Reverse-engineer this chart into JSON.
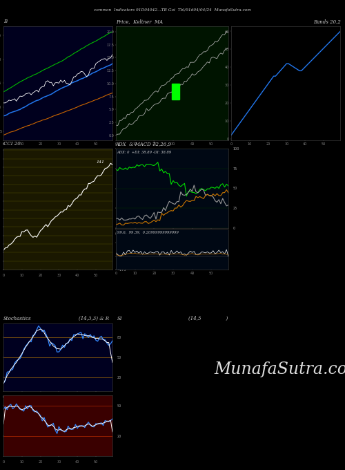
{
  "title": "common  Indicators 91D04042...TB Goi  Tbl/91d04/04/24  MunafaSutra.com",
  "bg_color": "#000000",
  "panel_bg_b": "#00001e",
  "panel_bg_keltner": "#001400",
  "panel_bg_cci": "#1a1800",
  "panel_bg_adx_top": "#000814",
  "panel_bg_adx_bot": "#000814",
  "panel_bg_stoch": "#000020",
  "panel_bg_stoch_r": "#3a0000",
  "label_b": "B",
  "label_keltner": "Price,  Keltner  MA",
  "label_bands": "Bands 20,2",
  "label_cci": "CCI 20",
  "label_adx": "ADX  & MACD 12,26,9",
  "label_stoch": "Stochastics",
  "label_stoch_params": "(14,3,3) & R",
  "label_si": "SI",
  "label_si_params": "(14,5                )",
  "adx_subtitle": "ADX: 0  +DI: 38.89 -DI: 38.89",
  "macd_subtitle": "99.6,  99.39,  0.20999999999999",
  "cci_value": "141",
  "munafa_text": "MunafaSutra.com",
  "n": 60
}
